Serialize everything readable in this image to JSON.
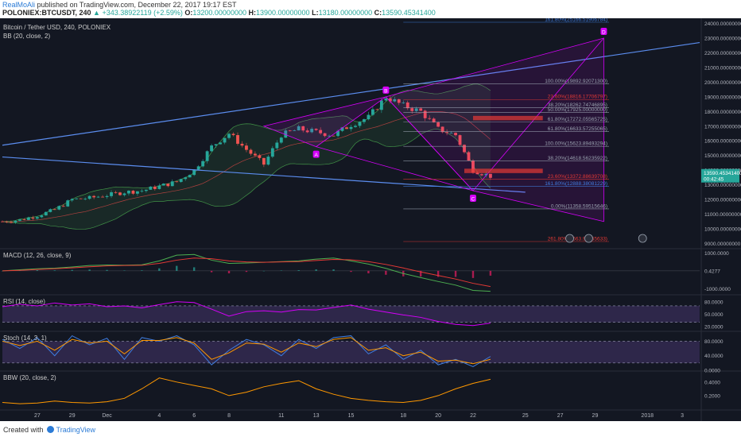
{
  "header": {
    "author": "RealMoAli",
    "published": "published on TradingView.com, December 22, 2017 19:17 EST",
    "symbol": "POLONIEX:BTCUSDT, 240",
    "change": "▲ +343.38922119 (+2.59%)",
    "ohlc": {
      "o_label": "O:",
      "o": "13200.00000000",
      "h_label": "H:",
      "h": "13900.00000000",
      "l_label": "L:",
      "l": "13180.00000000",
      "c_label": "C:",
      "c": "13590.45341400"
    }
  },
  "footer": {
    "created_with": "Created with",
    "brand": "TradingView"
  },
  "colors": {
    "background": "#131722",
    "up": "#26a69a",
    "down": "#ef5350",
    "bb_band": "#4caf50",
    "bb_basis": "#b0413e",
    "trendline": "#5b8def",
    "pattern": "#d500f9",
    "fib_red": "#e53935",
    "fib_blue": "#3f7de0",
    "macd": "#4caf50",
    "signal": "#e53935",
    "rsi": "#d500f9",
    "stoch_k": "#3f7de0",
    "stoch_d": "#ff9800",
    "bbw": "#ff9800"
  },
  "chart_data": [
    {
      "pane": "price",
      "type": "candlestick",
      "title": "Bitcoin / Tether USD, 240, POLONIEX",
      "indicator": "BB (20, close, 2)",
      "y_axis": {
        "ylim": [
          8700,
          24300
        ],
        "ticks": [
          9000,
          10000,
          11000,
          12000,
          13000,
          14000,
          15000,
          16000,
          17000,
          18000,
          19000,
          20000,
          21000,
          22000,
          23000,
          24000
        ],
        "tick_labels": [
          "9000.00000000",
          "10000.00000000",
          "11000.00000000",
          "12000.00000000",
          "13000.00000000",
          "14000.00000000",
          "15000.00000000",
          "16000.00000000",
          "17000.00000000",
          "18000.00000000",
          "19000.00000000",
          "20000.00000000",
          "21000.00000000",
          "22000.00000000",
          "23000.00000000",
          "24000.00000000"
        ]
      },
      "x_axis": {
        "range": [
          "Nov 25",
          "Jan 4"
        ],
        "tick_labels": [
          "27",
          "29",
          "Dec",
          "4",
          "6",
          "8",
          "11",
          "13",
          "15",
          "18",
          "20",
          "22",
          "25",
          "27",
          "29",
          "2018",
          "3"
        ]
      },
      "price_path": [
        [
          "Nov 25",
          10500
        ],
        [
          "Nov 26",
          10600
        ],
        [
          "Nov 27",
          10900
        ],
        [
          "Nov 28",
          11300
        ],
        [
          "Nov 29",
          12000
        ],
        [
          "Nov 30",
          12100
        ],
        [
          "Dec 1",
          12300
        ],
        [
          "Dec 2",
          12500
        ],
        [
          "Dec 3",
          12600
        ],
        [
          "Dec 4",
          12900
        ],
        [
          "Dec 5",
          13200
        ],
        [
          "Dec 6",
          14000
        ],
        [
          "Dec 7",
          15600
        ],
        [
          "Dec 8",
          16500
        ],
        [
          "Dec 9",
          15400
        ],
        [
          "Dec 10",
          14400
        ],
        [
          "Dec 11",
          16400
        ],
        [
          "Dec 12",
          16800
        ],
        [
          "Dec 13",
          16600
        ],
        [
          "Dec 14",
          16400
        ],
        [
          "Dec 15",
          17100
        ],
        [
          "Dec 16",
          17600
        ],
        [
          "Dec 17",
          19000
        ],
        [
          "Dec 18",
          18400
        ],
        [
          "Dec 19",
          18000
        ],
        [
          "Dec 20",
          16800
        ],
        [
          "Dec 21",
          16400
        ],
        [
          "Dec 22",
          14000
        ],
        [
          "Dec 23",
          13590
        ]
      ],
      "last_price": "13590.45341400",
      "last_price_sub": "00:42:45",
      "abc_pattern": {
        "labels": [
          "A",
          "B",
          "C",
          "D"
        ]
      },
      "fib_levels": [
        {
          "text": "161.80%(25166.51906784)",
          "value": 25166.52
        },
        {
          "text": "100.00%(19892.92071300)",
          "value": 19892.92
        },
        {
          "text": "23.60%(18816.17706797)",
          "value": 18816.18
        },
        {
          "text": "38.20%(18262.74746895)",
          "value": 18262.75
        },
        {
          "text": "50.00%(17925.00000000)",
          "value": 17925.0
        },
        {
          "text": "61.80%(17272.05565725)",
          "value": 17272.06
        },
        {
          "text": "61.80%(16633.57255065)",
          "value": 16633.57
        },
        {
          "text": "100.00%(15623.89493294)",
          "value": 15623.89
        },
        {
          "text": "38.20%(14618.56235922)",
          "value": 14618.56
        },
        {
          "text": "23.60%(13372.88639708)",
          "value": 13372.89
        },
        {
          "text": "161.80%(12888.38081229)",
          "value": 12888.38
        },
        {
          "text": "0.00%(11358.59515646)",
          "value": 11358.6
        },
        {
          "text": "261.80%(8663.96555633)",
          "value": 8663.97
        }
      ]
    },
    {
      "pane": "macd",
      "type": "line",
      "title": "MACD (12, 26, close, 9)",
      "ylim": [
        -1300,
        1200
      ],
      "ticks": [
        1000,
        0,
        -1000
      ],
      "tick_labels": [
        "1000.0000",
        "0.4277",
        "-1000.0000"
      ],
      "series": [
        {
          "values": [
            0,
            60,
            120,
            150,
            220,
            300,
            330,
            320,
            340,
            560,
            880,
            920,
            600,
            420,
            440,
            480,
            520,
            560,
            660,
            720,
            560,
            380,
            140,
            -150,
            -380,
            -600,
            -800,
            -1100,
            -1150
          ]
        },
        {
          "values": [
            0,
            30,
            80,
            120,
            170,
            230,
            280,
            300,
            310,
            420,
            600,
            720,
            680,
            560,
            500,
            480,
            500,
            520,
            580,
            640,
            620,
            520,
            360,
            160,
            -60,
            -260,
            -460,
            -700,
            -880
          ]
        }
      ]
    },
    {
      "pane": "rsi",
      "type": "line",
      "title": "RSI (14, close)",
      "ylim": [
        10,
        95
      ],
      "ticks": [
        80,
        50,
        20
      ],
      "tick_labels": [
        "80.0000",
        "50.0000",
        "20.0000"
      ],
      "series": [
        {
          "values": [
            68,
            74,
            70,
            77,
            72,
            75,
            68,
            70,
            65,
            73,
            80,
            78,
            62,
            45,
            56,
            58,
            55,
            61,
            60,
            66,
            72,
            62,
            55,
            48,
            42,
            32,
            25,
            22,
            28
          ]
        }
      ]
    },
    {
      "pane": "stoch",
      "type": "line",
      "title": "Stoch (14, 3, 1)",
      "ylim": [
        0,
        105
      ],
      "ticks": [
        80,
        40,
        0
      ],
      "tick_labels": [
        "80.0000",
        "40.0000",
        "0.0000"
      ],
      "series": [
        {
          "values": [
            85,
            60,
            90,
            40,
            95,
            70,
            88,
            30,
            90,
            80,
            95,
            70,
            15,
            55,
            85,
            70,
            40,
            85,
            60,
            90,
            95,
            45,
            70,
            30,
            55,
            15,
            30,
            10,
            38
          ]
        },
        {
          "values": [
            80,
            68,
            80,
            55,
            85,
            75,
            80,
            45,
            82,
            82,
            90,
            75,
            30,
            48,
            75,
            72,
            50,
            75,
            65,
            85,
            90,
            55,
            62,
            40,
            50,
            25,
            28,
            18,
            30
          ]
        }
      ]
    },
    {
      "pane": "bbw",
      "type": "line",
      "title": "BBW (20, close, 2)",
      "ylim": [
        0,
        0.55
      ],
      "ticks": [
        0.4,
        0.2
      ],
      "tick_labels": [
        "0.4000",
        "0.2000"
      ],
      "series": [
        {
          "values": [
            0.1,
            0.08,
            0.09,
            0.12,
            0.1,
            0.09,
            0.11,
            0.16,
            0.3,
            0.46,
            0.4,
            0.35,
            0.3,
            0.2,
            0.25,
            0.33,
            0.38,
            0.42,
            0.3,
            0.22,
            0.16,
            0.13,
            0.11,
            0.1,
            0.13,
            0.2,
            0.3,
            0.38,
            0.44
          ]
        }
      ]
    }
  ]
}
